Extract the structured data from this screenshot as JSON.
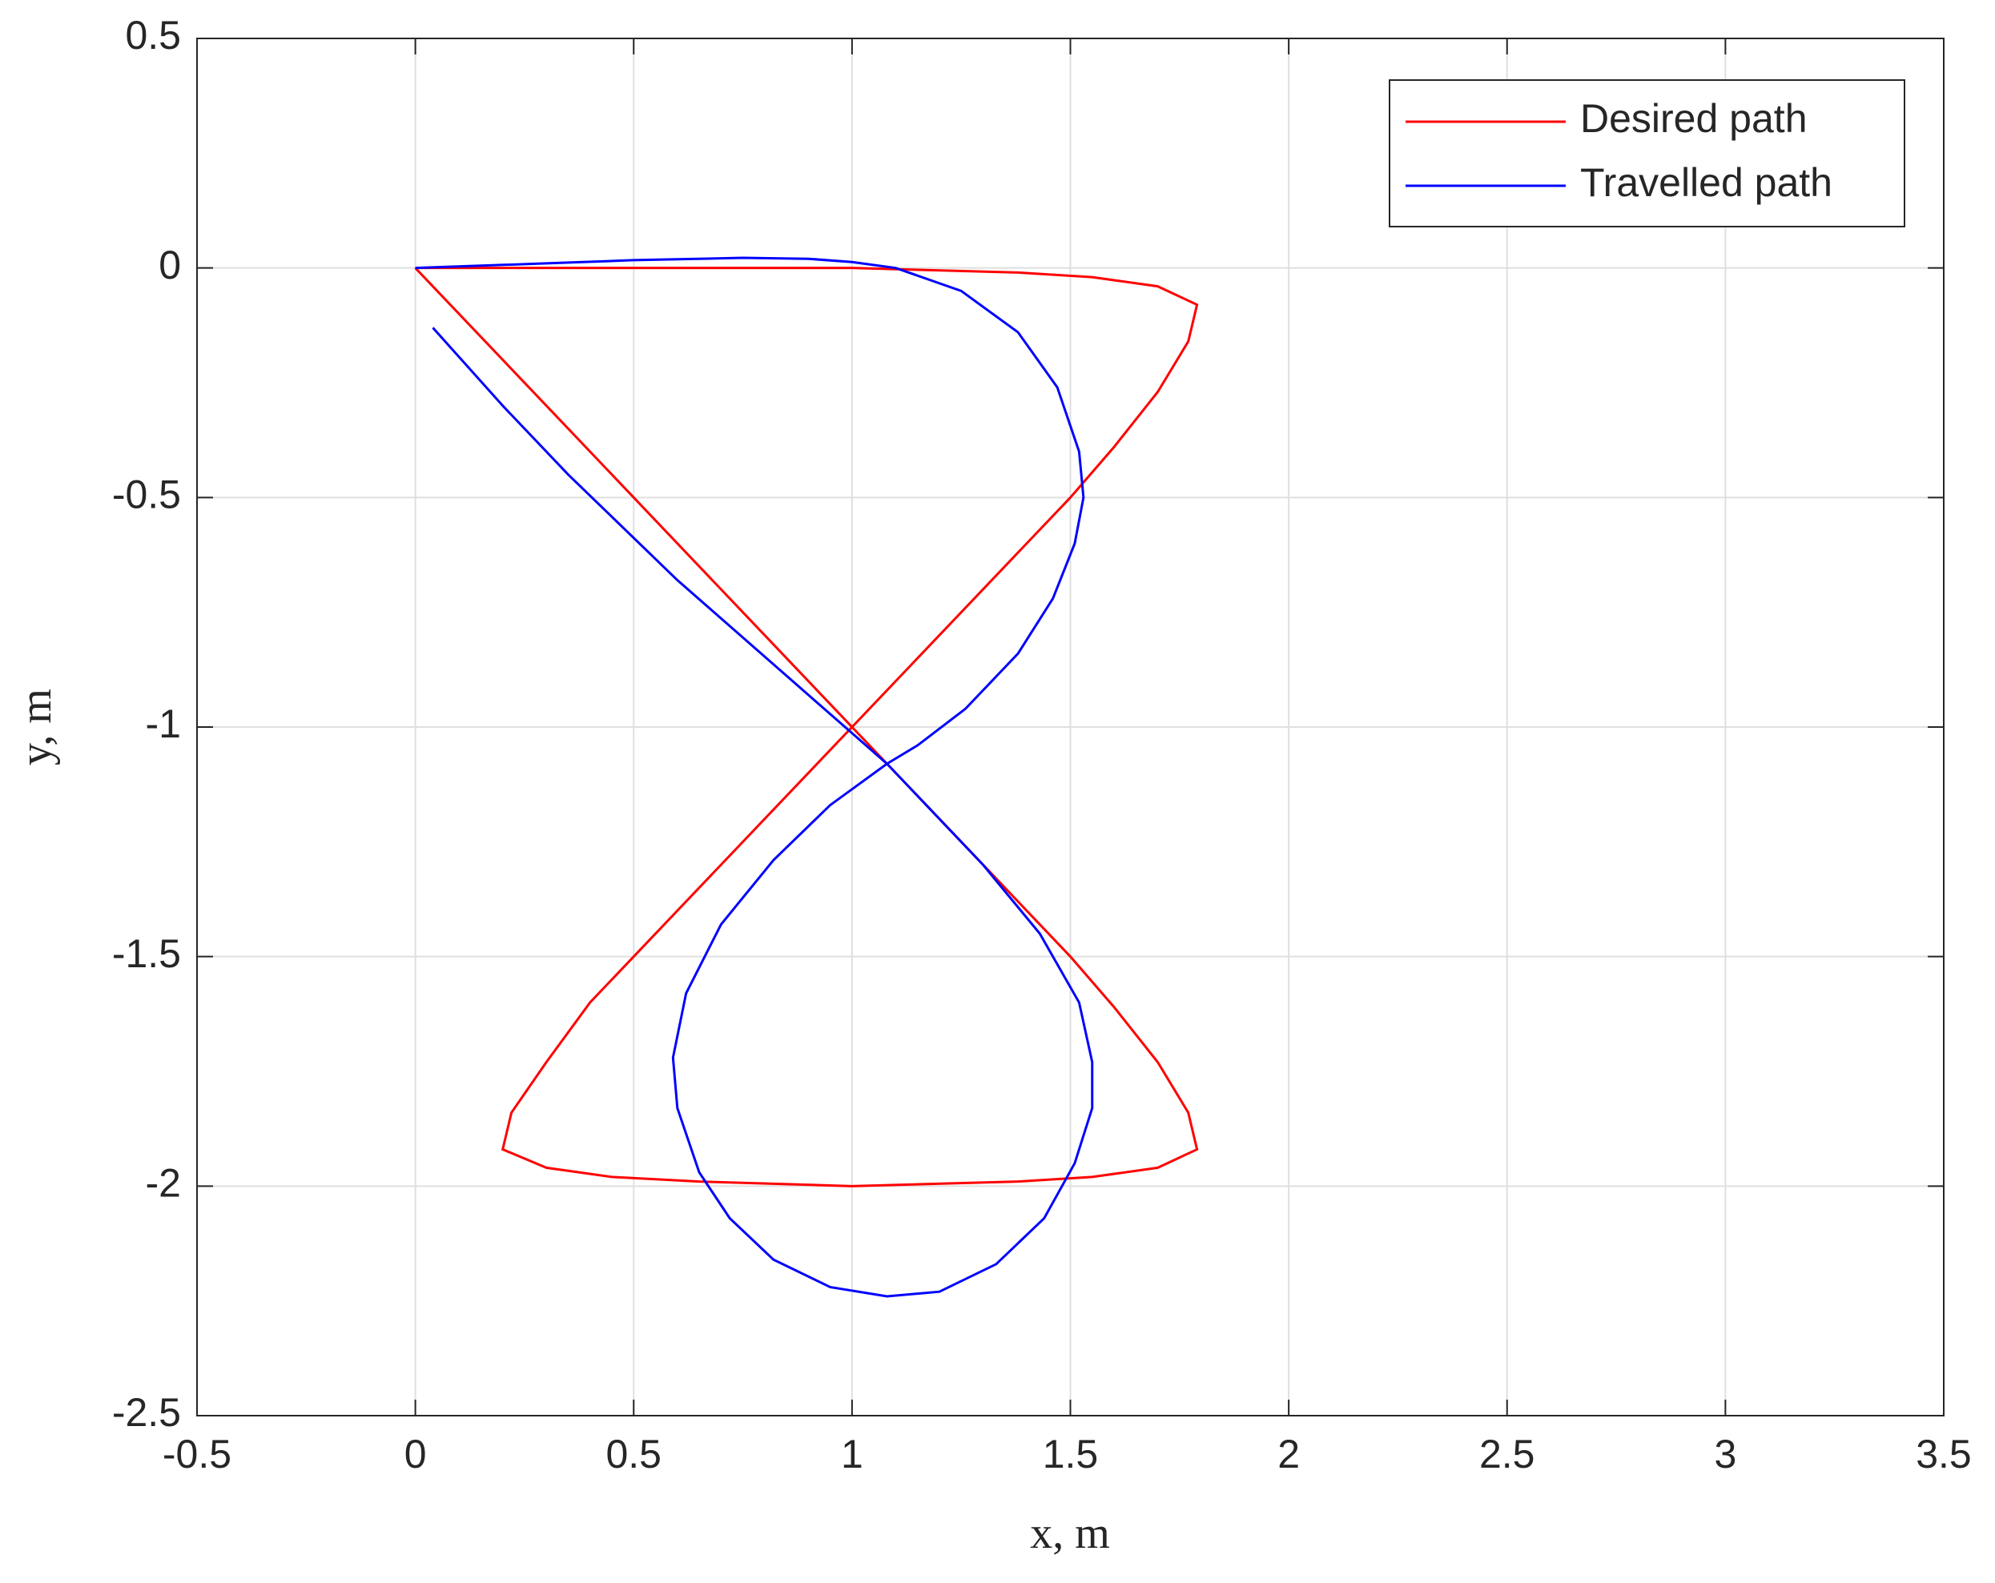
{
  "chart_data": {
    "type": "line",
    "xlabel": "x, m",
    "ylabel": "y, m",
    "xlim": [
      -0.5,
      3.5
    ],
    "xticks": [
      -0.5,
      0,
      0.5,
      1,
      1.5,
      2,
      2.5,
      3,
      3.5
    ],
    "ylim": [
      -2.5,
      0.5
    ],
    "yticks": [
      -2.5,
      -2,
      -1.5,
      -1,
      -0.5,
      0,
      0.5
    ],
    "grid": true,
    "legend": "upper right",
    "series": [
      {
        "name": "Desired path",
        "color": "#ff0000",
        "x": [
          0,
          0.5,
          1,
          1.38,
          1.55,
          1.7,
          1.79,
          1.77,
          1.7,
          1.6,
          1.5,
          1,
          0.5,
          0.4,
          0.3,
          0.22,
          0.2,
          0.3,
          0.45,
          0.65,
          1,
          1.38,
          1.55,
          1.7,
          1.79,
          1.77,
          1.7,
          1.6,
          1.5,
          1,
          0.5,
          0
        ],
        "values": [
          0,
          0,
          0,
          -0.01,
          -0.02,
          -0.04,
          -0.08,
          -0.16,
          -0.27,
          -0.39,
          -0.5,
          -1,
          -1.5,
          -1.6,
          -1.73,
          -1.84,
          -1.92,
          -1.96,
          -1.98,
          -1.99,
          -2,
          -1.99,
          -1.98,
          -1.96,
          -1.92,
          -1.84,
          -1.73,
          -1.61,
          -1.5,
          -1,
          -0.5,
          0
        ]
      },
      {
        "name": "Travelled path",
        "color": "#0000ff",
        "x": [
          0,
          0.3,
          0.5,
          0.75,
          0.9,
          1,
          1.1,
          1.25,
          1.38,
          1.47,
          1.52,
          1.53,
          1.51,
          1.46,
          1.38,
          1.26,
          1.15,
          1.08,
          0.95,
          0.82,
          0.7,
          0.62,
          0.59,
          0.6,
          0.65,
          0.72,
          0.82,
          0.95,
          1.08,
          1.2,
          1.33,
          1.44,
          1.51,
          1.55,
          1.55,
          1.52,
          1.43,
          1.3,
          1.18,
          1.08,
          0.9,
          0.6,
          0.35,
          0.2,
          0.04
        ],
        "values": [
          0,
          0.01,
          0.017,
          0.022,
          0.02,
          0.013,
          0,
          -0.05,
          -0.14,
          -0.26,
          -0.4,
          -0.5,
          -0.6,
          -0.72,
          -0.84,
          -0.96,
          -1.04,
          -1.08,
          -1.17,
          -1.29,
          -1.43,
          -1.58,
          -1.72,
          -1.83,
          -1.97,
          -2.07,
          -2.16,
          -2.22,
          -2.24,
          -2.23,
          -2.17,
          -2.07,
          -1.95,
          -1.83,
          -1.73,
          -1.6,
          -1.45,
          -1.3,
          -1.18,
          -1.08,
          -0.93,
          -0.68,
          -0.45,
          -0.3,
          -0.13
        ]
      }
    ]
  }
}
